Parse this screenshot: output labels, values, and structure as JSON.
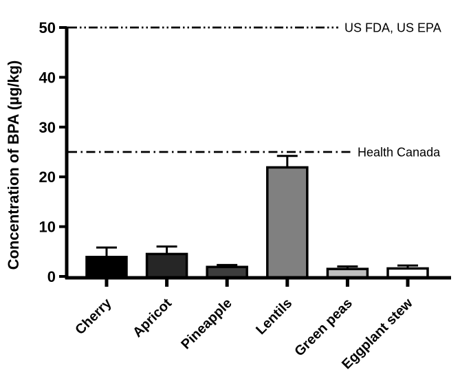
{
  "figure": {
    "background_color": "#ffffff",
    "axis_color": "#000000"
  },
  "chart_data": {
    "type": "bar",
    "title": "",
    "xlabel": "",
    "ylabel": "Concentration of BPA (µg/kg)",
    "ylim": [
      0,
      50
    ],
    "yticks": [
      0,
      10,
      20,
      30,
      40,
      50
    ],
    "categories": [
      "Cherry",
      "Apricot",
      "Pineapple",
      "Lentils",
      "Green peas",
      "Eggplant stew"
    ],
    "series": [
      {
        "name": "BPA concentration",
        "values": [
          3.9,
          4.5,
          1.9,
          21.9,
          1.5,
          1.6
        ],
        "errors_upper": [
          1.9,
          1.5,
          0.4,
          2.3,
          0.5,
          0.6
        ],
        "bar_fill_colors": [
          "#000000",
          "#262626",
          "#3d3d3d",
          "#808080",
          "#bfbfbf",
          "#ffffff"
        ],
        "bar_border_color": "#000000",
        "error_bar_color": "#000000"
      }
    ],
    "reference_lines": [
      {
        "value": 50,
        "label": "US FDA, US EPA",
        "dash_style": "dash-dot-dot",
        "color": "#000000"
      },
      {
        "value": 25,
        "label": "Health Canada",
        "dash_style": "dash-dot",
        "color": "#000000"
      }
    ],
    "grid": false,
    "legend_position": "none",
    "xtick_label_rotation_deg": 45
  }
}
